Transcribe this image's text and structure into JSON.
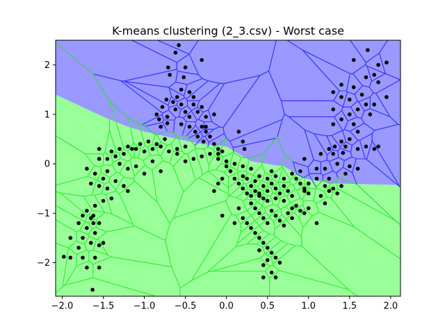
{
  "chart_data": {
    "type": "scatter",
    "title": "K-means clustering (2_3.csv) - Worst case",
    "xlabel": "",
    "ylabel": "",
    "xlim": [
      -2.08,
      2.12
    ],
    "ylim": [
      -2.68,
      2.5
    ],
    "xticks": [
      -2.0,
      -1.5,
      -1.0,
      -0.5,
      0.0,
      0.5,
      1.0,
      1.5,
      2.0
    ],
    "xtick_labels": [
      "−2.0",
      "−1.5",
      "−1.0",
      "−0.5",
      "0.0",
      "0.5",
      "1.0",
      "1.5",
      "2.0"
    ],
    "yticks": [
      -2,
      -1,
      0,
      1,
      2
    ],
    "ytick_labels": [
      "−2",
      "−1",
      "0",
      "1",
      "2"
    ],
    "grid": false,
    "legend": false,
    "regions": [
      {
        "cluster": 1,
        "fill": "#9999ff",
        "edge": "#3333ff",
        "boundary": [
          [
            -2.08,
            2.5
          ],
          [
            2.12,
            2.5
          ],
          [
            2.12,
            -0.43
          ],
          [
            1.3,
            -0.4
          ],
          [
            0.95,
            -0.3
          ],
          [
            0.7,
            -0.05
          ],
          [
            0.55,
            -0.02
          ],
          [
            0.3,
            0.05
          ],
          [
            0.0,
            0.35
          ],
          [
            -0.3,
            0.4
          ],
          [
            -0.6,
            0.5
          ],
          [
            -1.0,
            0.65
          ],
          [
            -1.2,
            0.75
          ],
          [
            -1.5,
            0.95
          ],
          [
            -2.08,
            1.4
          ]
        ]
      },
      {
        "cluster": 2,
        "fill": "#99ff99",
        "edge": "#33ee33",
        "boundary": [
          [
            -2.08,
            1.4
          ],
          [
            -1.5,
            0.95
          ],
          [
            -1.2,
            0.75
          ],
          [
            -1.0,
            0.65
          ],
          [
            -0.6,
            0.5
          ],
          [
            -0.3,
            0.4
          ],
          [
            0.0,
            0.35
          ],
          [
            0.3,
            0.05
          ],
          [
            0.55,
            -0.02
          ],
          [
            0.7,
            -0.05
          ],
          [
            0.95,
            -0.3
          ],
          [
            1.3,
            -0.4
          ],
          [
            2.12,
            -0.43
          ],
          [
            2.12,
            -2.68
          ],
          [
            -2.08,
            -2.68
          ]
        ]
      }
    ],
    "point_color": "#000000",
    "points": [
      [
        -0.58,
        2.4
      ],
      [
        -0.62,
        2.25
      ],
      [
        -0.3,
        2.1
      ],
      [
        -0.5,
        1.95
      ],
      [
        -0.71,
        1.95
      ],
      [
        -0.69,
        1.8
      ],
      [
        -0.52,
        1.75
      ],
      [
        -0.55,
        1.5
      ],
      [
        -0.4,
        1.35
      ],
      [
        -0.45,
        1.45
      ],
      [
        -0.6,
        1.35
      ],
      [
        -0.73,
        1.3
      ],
      [
        -0.65,
        1.25
      ],
      [
        -0.78,
        1.15
      ],
      [
        -0.85,
        1.0
      ],
      [
        -0.55,
        1.2
      ],
      [
        -0.62,
        1.1
      ],
      [
        -0.5,
        1.05
      ],
      [
        -0.4,
        1.2
      ],
      [
        -0.3,
        1.15
      ],
      [
        -0.35,
        1.05
      ],
      [
        -0.45,
        0.95
      ],
      [
        -0.25,
        0.95
      ],
      [
        -0.15,
        1.0
      ],
      [
        -0.72,
        0.95
      ],
      [
        -0.82,
        0.9
      ],
      [
        -0.8,
        0.75
      ],
      [
        -0.72,
        0.82
      ],
      [
        -0.55,
        0.8
      ],
      [
        -0.45,
        0.75
      ],
      [
        -0.38,
        0.65
      ],
      [
        -0.3,
        0.75
      ],
      [
        -0.25,
        0.65
      ],
      [
        -0.2,
        0.55
      ],
      [
        -0.35,
        0.55
      ],
      [
        -0.28,
        0.45
      ],
      [
        -0.15,
        0.4
      ],
      [
        -0.1,
        0.3
      ],
      [
        -0.05,
        0.25
      ],
      [
        0.15,
        0.65
      ],
      [
        0.2,
        0.45
      ],
      [
        0.22,
        0.3
      ],
      [
        -0.6,
        0.3
      ],
      [
        -0.5,
        0.35
      ],
      [
        -0.25,
        0.75
      ],
      [
        1.72,
        2.3
      ],
      [
        1.55,
        2.1
      ],
      [
        1.85,
        2.0
      ],
      [
        1.95,
        2.05
      ],
      [
        1.8,
        1.8
      ],
      [
        1.7,
        1.75
      ],
      [
        1.85,
        1.65
      ],
      [
        1.4,
        1.6
      ],
      [
        1.55,
        1.55
      ],
      [
        1.3,
        1.45
      ],
      [
        1.4,
        1.35
      ],
      [
        1.5,
        1.3
      ],
      [
        1.65,
        1.4
      ],
      [
        1.8,
        1.2
      ],
      [
        1.95,
        1.35
      ],
      [
        1.7,
        1.2
      ],
      [
        1.3,
        1.1
      ],
      [
        1.6,
        1.1
      ],
      [
        1.75,
        1.0
      ],
      [
        1.5,
        1.0
      ],
      [
        1.4,
        0.9
      ],
      [
        1.55,
        0.8
      ],
      [
        1.3,
        0.8
      ],
      [
        1.6,
        0.65
      ],
      [
        1.5,
        0.5
      ],
      [
        1.4,
        0.45
      ],
      [
        1.32,
        0.35
      ],
      [
        1.25,
        0.3
      ],
      [
        1.15,
        0.2
      ],
      [
        1.45,
        0.35
      ],
      [
        1.6,
        0.3
      ],
      [
        1.7,
        0.35
      ],
      [
        1.8,
        0.3
      ],
      [
        1.85,
        0.35
      ],
      [
        1.3,
        0.2
      ],
      [
        1.42,
        0.22
      ],
      [
        1.1,
        -0.1
      ],
      [
        1.2,
        -0.1
      ],
      [
        1.35,
        0.0
      ],
      [
        1.5,
        -0.05
      ],
      [
        1.6,
        -0.1
      ],
      [
        1.45,
        -0.2
      ],
      [
        1.25,
        -0.3
      ],
      [
        0.95,
        0.1
      ],
      [
        -1.55,
        0.3
      ],
      [
        -1.4,
        0.25
      ],
      [
        -1.3,
        0.3
      ],
      [
        -1.2,
        0.35
      ],
      [
        -1.1,
        0.3
      ],
      [
        -1.0,
        0.25
      ],
      [
        -0.9,
        0.3
      ],
      [
        -0.8,
        0.35
      ],
      [
        -0.7,
        0.25
      ],
      [
        -0.6,
        0.2
      ],
      [
        -1.15,
        0.3
      ],
      [
        -1.05,
        0.4
      ],
      [
        -0.95,
        0.45
      ],
      [
        -0.85,
        0.4
      ],
      [
        -0.75,
        0.5
      ],
      [
        -1.25,
        0.2
      ],
      [
        -1.35,
        0.15
      ],
      [
        -1.45,
        0.1
      ],
      [
        -1.55,
        0.1
      ],
      [
        -1.7,
        -0.1
      ],
      [
        -1.6,
        -0.2
      ],
      [
        -1.5,
        -0.3
      ],
      [
        -1.65,
        -0.4
      ],
      [
        -1.55,
        -0.45
      ],
      [
        -1.45,
        -0.5
      ],
      [
        -1.35,
        -0.35
      ],
      [
        -1.25,
        -0.45
      ],
      [
        -1.2,
        -0.55
      ],
      [
        -1.45,
        -0.15
      ],
      [
        -1.3,
        0.0
      ],
      [
        -1.1,
        -0.05
      ],
      [
        -0.9,
        0.05
      ],
      [
        -0.8,
        -0.15
      ],
      [
        -1.0,
        -0.2
      ],
      [
        -1.2,
        -0.1
      ],
      [
        -1.4,
        -0.7
      ],
      [
        -1.5,
        -0.75
      ],
      [
        -1.6,
        -0.85
      ],
      [
        -1.7,
        -0.95
      ],
      [
        -1.75,
        -1.05
      ],
      [
        -1.65,
        -1.1
      ],
      [
        -1.55,
        -1.2
      ],
      [
        -1.8,
        -1.2
      ],
      [
        -1.7,
        -1.3
      ],
      [
        -1.6,
        -1.4
      ],
      [
        -1.9,
        -1.5
      ],
      [
        -1.75,
        -1.5
      ],
      [
        -1.65,
        -1.6
      ],
      [
        -1.55,
        -1.65
      ],
      [
        -1.8,
        -1.7
      ],
      [
        -1.9,
        -1.9
      ],
      [
        -1.75,
        -1.9
      ],
      [
        -1.6,
        -1.9
      ],
      [
        -1.55,
        -2.1
      ],
      [
        -1.7,
        -2.1
      ],
      [
        -1.63,
        -2.55
      ],
      [
        -1.98,
        -1.88
      ],
      [
        -1.5,
        -1.6
      ],
      [
        -1.62,
        -1.05
      ],
      [
        -1.62,
        -1.2
      ],
      [
        -0.5,
        0.05
      ],
      [
        -0.4,
        0.1
      ],
      [
        -0.3,
        0.15
      ],
      [
        -0.2,
        0.2
      ],
      [
        -0.1,
        0.1
      ],
      [
        0.0,
        0.05
      ],
      [
        0.1,
        0.0
      ],
      [
        0.2,
        -0.05
      ],
      [
        0.3,
        -0.1
      ],
      [
        0.05,
        -0.15
      ],
      [
        0.1,
        -0.3
      ],
      [
        0.15,
        -0.4
      ],
      [
        0.2,
        -0.5
      ],
      [
        0.25,
        -0.6
      ],
      [
        0.3,
        -0.45
      ],
      [
        0.35,
        -0.55
      ],
      [
        0.4,
        -0.65
      ],
      [
        0.45,
        -0.7
      ],
      [
        0.5,
        -0.75
      ],
      [
        0.35,
        -0.35
      ],
      [
        0.25,
        -0.3
      ],
      [
        0.2,
        -0.25
      ],
      [
        0.4,
        -0.25
      ],
      [
        0.5,
        -0.3
      ],
      [
        0.55,
        -0.4
      ],
      [
        0.6,
        -0.5
      ],
      [
        0.65,
        -0.6
      ],
      [
        0.7,
        -0.45
      ],
      [
        0.75,
        -0.55
      ],
      [
        0.8,
        -0.65
      ],
      [
        0.85,
        -0.3
      ],
      [
        0.9,
        -0.4
      ],
      [
        0.95,
        -0.5
      ],
      [
        1.0,
        -0.6
      ],
      [
        0.3,
        -0.8
      ],
      [
        0.35,
        -0.9
      ],
      [
        0.4,
        -1.0
      ],
      [
        0.45,
        -1.1
      ],
      [
        0.5,
        -1.2
      ],
      [
        0.55,
        -0.95
      ],
      [
        0.6,
        -1.05
      ],
      [
        0.65,
        -1.15
      ],
      [
        0.7,
        -1.25
      ],
      [
        0.75,
        -1.0
      ],
      [
        0.8,
        -1.1
      ],
      [
        0.85,
        -0.85
      ],
      [
        0.9,
        -0.95
      ],
      [
        0.95,
        -1.0
      ],
      [
        0.2,
        -1.1
      ],
      [
        0.25,
        -1.2
      ],
      [
        0.3,
        -1.3
      ],
      [
        0.35,
        -1.4
      ],
      [
        0.4,
        -1.5
      ],
      [
        0.45,
        -1.6
      ],
      [
        0.5,
        -1.7
      ],
      [
        0.55,
        -1.8
      ],
      [
        0.6,
        -1.9
      ],
      [
        0.65,
        -2.0
      ],
      [
        0.45,
        -2.05
      ],
      [
        0.55,
        -2.2
      ],
      [
        0.6,
        -2.3
      ],
      [
        0.45,
        -2.3
      ],
      [
        0.5,
        -1.95
      ],
      [
        0.4,
        -1.75
      ],
      [
        -0.05,
        -1.05
      ],
      [
        0.1,
        -1.2
      ],
      [
        0.15,
        -0.9
      ],
      [
        -0.1,
        -0.4
      ],
      [
        -0.15,
        -0.55
      ],
      [
        -0.05,
        -0.3
      ],
      [
        0.0,
        -0.05
      ],
      [
        -0.1,
        0.2
      ],
      [
        1.0,
        -0.4
      ],
      [
        1.1,
        -0.3
      ],
      [
        1.2,
        -0.45
      ],
      [
        1.3,
        -0.5
      ],
      [
        1.15,
        -0.65
      ],
      [
        1.2,
        -0.8
      ],
      [
        1.1,
        -1.2
      ],
      [
        1.25,
        -0.55
      ],
      [
        1.35,
        -0.6
      ],
      [
        1.4,
        -0.45
      ],
      [
        0.95,
        -0.55
      ],
      [
        0.7,
        -0.3
      ],
      [
        0.8,
        -0.2
      ],
      [
        0.9,
        -0.15
      ],
      [
        0.6,
        -0.25
      ],
      [
        0.55,
        -0.15
      ],
      [
        0.45,
        -0.45
      ],
      [
        0.5,
        -0.55
      ],
      [
        0.6,
        -0.7
      ],
      [
        0.7,
        -0.75
      ],
      [
        0.8,
        -0.9
      ],
      [
        1.0,
        -0.9
      ],
      [
        0.4,
        -0.6
      ],
      [
        0.3,
        -0.65
      ]
    ]
  }
}
